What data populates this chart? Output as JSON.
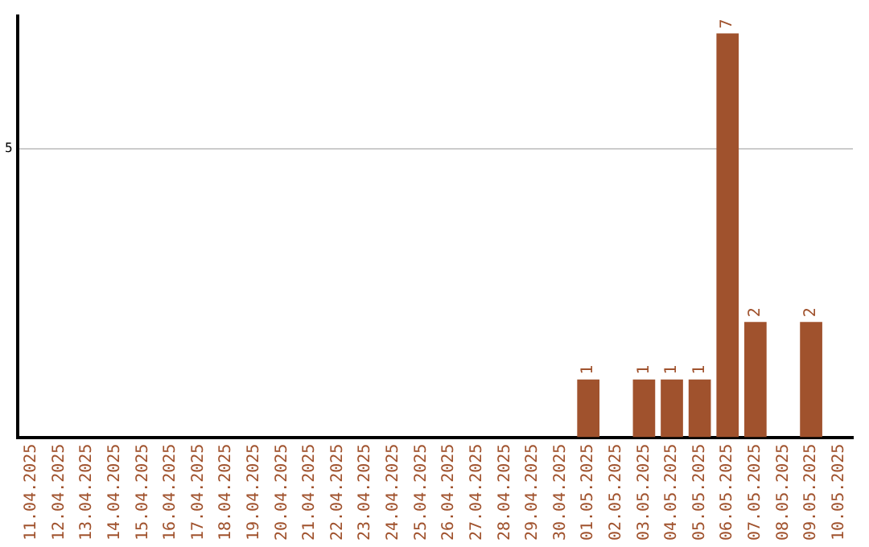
{
  "chart_data": {
    "type": "bar",
    "categories": [
      "11.04.2025",
      "12.04.2025",
      "13.04.2025",
      "14.04.2025",
      "15.04.2025",
      "16.04.2025",
      "17.04.2025",
      "18.04.2025",
      "19.04.2025",
      "20.04.2025",
      "21.04.2025",
      "22.04.2025",
      "23.04.2025",
      "24.04.2025",
      "25.04.2025",
      "26.04.2025",
      "27.04.2025",
      "28.04.2025",
      "29.04.2025",
      "30.04.2025",
      "01.05.2025",
      "02.05.2025",
      "03.05.2025",
      "04.05.2025",
      "05.05.2025",
      "06.05.2025",
      "07.05.2025",
      "08.05.2025",
      "09.05.2025",
      "10.05.2025"
    ],
    "values": [
      null,
      null,
      null,
      null,
      null,
      null,
      null,
      null,
      null,
      null,
      null,
      null,
      null,
      null,
      null,
      null,
      null,
      null,
      null,
      null,
      1,
      null,
      1,
      1,
      1,
      7,
      2,
      null,
      2,
      null
    ],
    "color": "#a0522d",
    "ylim": [
      0,
      7.3
    ],
    "yticks": [
      5
    ],
    "grid": "y",
    "data_labels": true,
    "legend": false
  }
}
